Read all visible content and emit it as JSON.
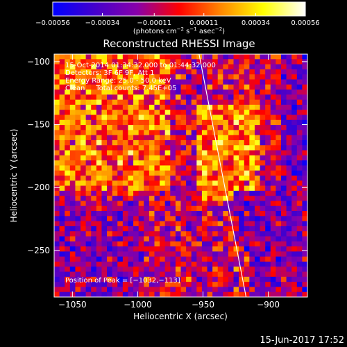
{
  "chart_data": {
    "type": "heatmap",
    "title": "Reconstructed RHESSI Image",
    "xlabel": "Heliocentric X (arcsec)",
    "ylabel": "Heliocentric Y (arcsec)",
    "xlim": [
      -1064,
      -870
    ],
    "ylim": [
      -287,
      -94
    ],
    "x_ticks": [
      -1050,
      -1000,
      -950,
      -900
    ],
    "x_tick_labels": [
      "−1050",
      "−1000",
      "−950",
      "−900"
    ],
    "y_ticks": [
      -100,
      -150,
      -200,
      -250
    ],
    "y_tick_labels": [
      "−100",
      "−150",
      "−200",
      "−250"
    ],
    "colorbar": {
      "range": [
        -0.00056,
        0.00056
      ],
      "ticks": [
        -0.00056,
        -0.00034,
        -0.00011,
        0.00011,
        0.00034,
        0.00056
      ],
      "tick_labels": [
        "−0.00056",
        "−0.00034",
        "−0.00011",
        "0.00011",
        "0.00034",
        "0.00056"
      ],
      "units_prefix": "(photons cm",
      "units_sup1": "−2",
      "units_mid1": " s",
      "units_sup2": "−1",
      "units_mid2": " asec",
      "units_sup3": "−2",
      "units_suffix": ")",
      "colors": [
        "#0000ff",
        "#4400cc",
        "#8800aa",
        "#ff0000",
        "#ff8800",
        "#ffff00",
        "#ffffff"
      ]
    },
    "annotations": [
      "15-Oct-2014 01:34:32.000 to 01:44:32.000",
      "Detectors: 3F 6F 9F, Att 1",
      "Energy Range: 25.0 - 50.0 keV",
      "Clean     Total counts: 7.45E+05"
    ],
    "peak_label": "Position of Peak = [−1032,−113]",
    "limb_line": [
      {
        "x": -953,
        "y": -94
      },
      {
        "x": -917,
        "y": -287
      }
    ],
    "grid": false
  },
  "timestamp": "15-Jun-2017 17:52"
}
